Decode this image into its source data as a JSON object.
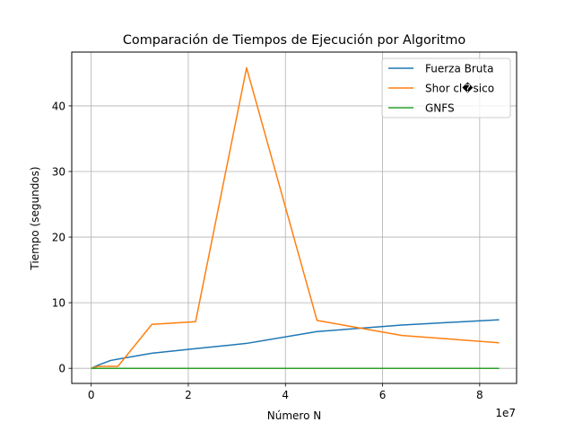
{
  "chart_data": {
    "type": "line",
    "title": "Comparación de Tiempos de Ejecución por Algoritmo",
    "xlabel": "Número N",
    "ylabel": "Tiempo (segundos)",
    "x_offset_label": "1e7",
    "xlim": [
      -4000000,
      87600000
    ],
    "ylim": [
      -2.3,
      48.2
    ],
    "xticks": [
      0,
      20000000,
      40000000,
      60000000,
      80000000
    ],
    "xtick_labels": [
      "0",
      "2",
      "4",
      "6",
      "8"
    ],
    "yticks": [
      0,
      10,
      20,
      30,
      40
    ],
    "ytick_labels": [
      "0",
      "10",
      "20",
      "30",
      "40"
    ],
    "grid": true,
    "legend_position": "top-right",
    "series": [
      {
        "name": "Fuerza Bruta",
        "color": "#1f77b4",
        "x": [
          0,
          1500000,
          4000000,
          12500000,
          21500000,
          32000000,
          46500000,
          64000000,
          84000000
        ],
        "y": [
          0,
          0.5,
          1.2,
          2.3,
          3.0,
          3.8,
          5.6,
          6.6,
          7.4
        ]
      },
      {
        "name": "Shor cl�sico",
        "color": "#ff7f0e",
        "x": [
          0,
          1500000,
          5500000,
          12500000,
          21500000,
          32000000,
          46500000,
          64000000,
          84000000
        ],
        "y": [
          0,
          0.3,
          0.3,
          6.7,
          7.1,
          45.8,
          7.3,
          5.0,
          3.9
        ]
      },
      {
        "name": "GNFS",
        "color": "#2ca02c",
        "x": [
          0,
          1500000,
          5500000,
          12500000,
          21500000,
          32000000,
          46500000,
          64000000,
          84000000
        ],
        "y": [
          0,
          0,
          0,
          0,
          0,
          0,
          0,
          0,
          0
        ]
      }
    ]
  }
}
